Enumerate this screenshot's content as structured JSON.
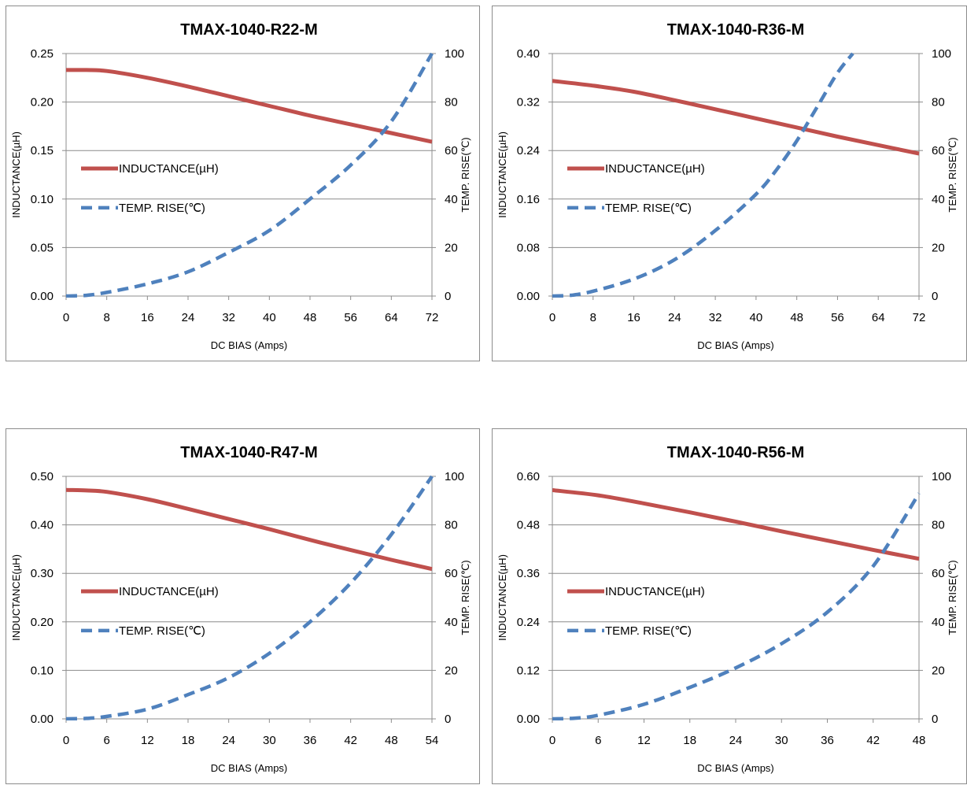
{
  "chart_data": [
    {
      "type": "line",
      "title": "TMAX-1040-R22-M",
      "xlabel": "DC BIAS  (Amps)",
      "ylabel": "INDUCTANCE(µH)",
      "y2label": "TEMP. RISE(℃)",
      "xlim": [
        0,
        72
      ],
      "ylim": [
        0,
        0.25
      ],
      "y2lim": [
        0,
        100
      ],
      "x_ticks": [
        "0",
        "8",
        "16",
        "24",
        "32",
        "40",
        "48",
        "56",
        "64",
        "72"
      ],
      "y_ticks": [
        "0.00",
        "0.05",
        "0.10",
        "0.15",
        "0.20",
        "0.25"
      ],
      "y2_ticks": [
        "0",
        "20",
        "40",
        "60",
        "80",
        "100"
      ],
      "grid": true,
      "legend_position": "left-middle",
      "series": [
        {
          "name": "INDUCTANCE(µH)",
          "axis": "left",
          "color": "#c0504d",
          "dash": "solid",
          "x": [
            0,
            4,
            8,
            16,
            24,
            32,
            40,
            48,
            56,
            64,
            72
          ],
          "values": [
            0.233,
            0.233,
            0.232,
            0.225,
            0.216,
            0.206,
            0.196,
            0.186,
            0.177,
            0.168,
            0.159
          ]
        },
        {
          "name": "TEMP. RISE(℃)",
          "axis": "right",
          "color": "#4f81bd",
          "dash": "dashed",
          "x": [
            0,
            4,
            8,
            16,
            24,
            32,
            40,
            48,
            56,
            64,
            72
          ],
          "values": [
            0,
            0.3,
            1.5,
            5,
            10,
            18,
            27,
            40,
            54,
            72,
            100
          ]
        }
      ]
    },
    {
      "type": "line",
      "title": "TMAX-1040-R36-M",
      "xlabel": "DC BIAS  (Amps)",
      "ylabel": "INDUCTANCE(µH)",
      "y2label": "TEMP. RISE(℃)",
      "xlim": [
        0,
        72
      ],
      "ylim": [
        0,
        0.4
      ],
      "y2lim": [
        0,
        100
      ],
      "x_ticks": [
        "0",
        "8",
        "16",
        "24",
        "32",
        "40",
        "48",
        "56",
        "64",
        "72"
      ],
      "y_ticks": [
        "0.00",
        "0.08",
        "0.16",
        "0.24",
        "0.32",
        "0.40"
      ],
      "y2_ticks": [
        "0",
        "20",
        "40",
        "60",
        "80",
        "100"
      ],
      "grid": true,
      "legend_position": "left-middle",
      "series": [
        {
          "name": "INDUCTANCE(µH)",
          "axis": "left",
          "color": "#c0504d",
          "dash": "solid",
          "x": [
            0,
            8,
            16,
            24,
            32,
            40,
            48,
            56,
            64,
            72
          ],
          "values": [
            0.355,
            0.347,
            0.337,
            0.323,
            0.308,
            0.293,
            0.278,
            0.263,
            0.249,
            0.235
          ]
        },
        {
          "name": "TEMP. RISE(℃)",
          "axis": "right",
          "color": "#4f81bd",
          "dash": "dashed",
          "x": [
            0,
            4,
            8,
            16,
            24,
            32,
            40,
            44,
            48,
            52,
            56,
            59
          ],
          "values": [
            0,
            0.4,
            2,
            7,
            15,
            27,
            42,
            52,
            64,
            78,
            92,
            100
          ]
        }
      ]
    },
    {
      "type": "line",
      "title": "TMAX-1040-R47-M",
      "xlabel": "DC BIAS  (Amps)",
      "ylabel": "INDUCTANCE(µH)",
      "y2label": "TEMP. RISE(℃)",
      "xlim": [
        0,
        54
      ],
      "ylim": [
        0,
        0.5
      ],
      "y2lim": [
        0,
        100
      ],
      "x_ticks": [
        "0",
        "6",
        "12",
        "18",
        "24",
        "30",
        "36",
        "42",
        "48",
        "54"
      ],
      "y_ticks": [
        "0.00",
        "0.10",
        "0.20",
        "0.30",
        "0.40",
        "0.50"
      ],
      "y2_ticks": [
        "0",
        "20",
        "40",
        "60",
        "80",
        "100"
      ],
      "grid": true,
      "legend_position": "left-middle",
      "series": [
        {
          "name": "INDUCTANCE(µH)",
          "axis": "left",
          "color": "#c0504d",
          "dash": "solid",
          "x": [
            0,
            3,
            6,
            12,
            18,
            24,
            30,
            36,
            42,
            48,
            54
          ],
          "values": [
            0.472,
            0.471,
            0.468,
            0.453,
            0.433,
            0.412,
            0.391,
            0.369,
            0.348,
            0.328,
            0.309
          ]
        },
        {
          "name": "TEMP. RISE(℃)",
          "axis": "right",
          "color": "#4f81bd",
          "dash": "dashed",
          "x": [
            0,
            3,
            6,
            12,
            18,
            24,
            30,
            36,
            42,
            48,
            54
          ],
          "values": [
            0,
            0.2,
            1,
            4,
            10,
            17,
            27,
            40,
            56,
            76,
            100
          ]
        }
      ]
    },
    {
      "type": "line",
      "title": "TMAX-1040-R56-M",
      "xlabel": "DC BIAS  (Amps)",
      "ylabel": "INDUCTANCE(µH)",
      "y2label": "TEMP. RISE(℃)",
      "xlim": [
        0,
        48
      ],
      "ylim": [
        0,
        0.6
      ],
      "y2lim": [
        0,
        100
      ],
      "x_ticks": [
        "0",
        "6",
        "12",
        "18",
        "24",
        "30",
        "36",
        "42",
        "48"
      ],
      "y_ticks": [
        "0.00",
        "0.12",
        "0.24",
        "0.36",
        "0.48",
        "0.60"
      ],
      "y2_ticks": [
        "0",
        "20",
        "40",
        "60",
        "80",
        "100"
      ],
      "grid": true,
      "legend_position": "left-middle",
      "series": [
        {
          "name": "INDUCTANCE(µH)",
          "axis": "left",
          "color": "#c0504d",
          "dash": "solid",
          "x": [
            0,
            6,
            12,
            18,
            24,
            30,
            36,
            42,
            48
          ],
          "values": [
            0.566,
            0.553,
            0.533,
            0.511,
            0.488,
            0.464,
            0.441,
            0.418,
            0.396
          ]
        },
        {
          "name": "TEMP. RISE(℃)",
          "axis": "right",
          "color": "#4f81bd",
          "dash": "dashed",
          "x": [
            0,
            3,
            6,
            12,
            18,
            24,
            30,
            36,
            42,
            48
          ],
          "values": [
            0,
            0.3,
            1.5,
            6,
            13,
            21,
            31,
            44,
            63,
            93
          ]
        }
      ]
    }
  ]
}
